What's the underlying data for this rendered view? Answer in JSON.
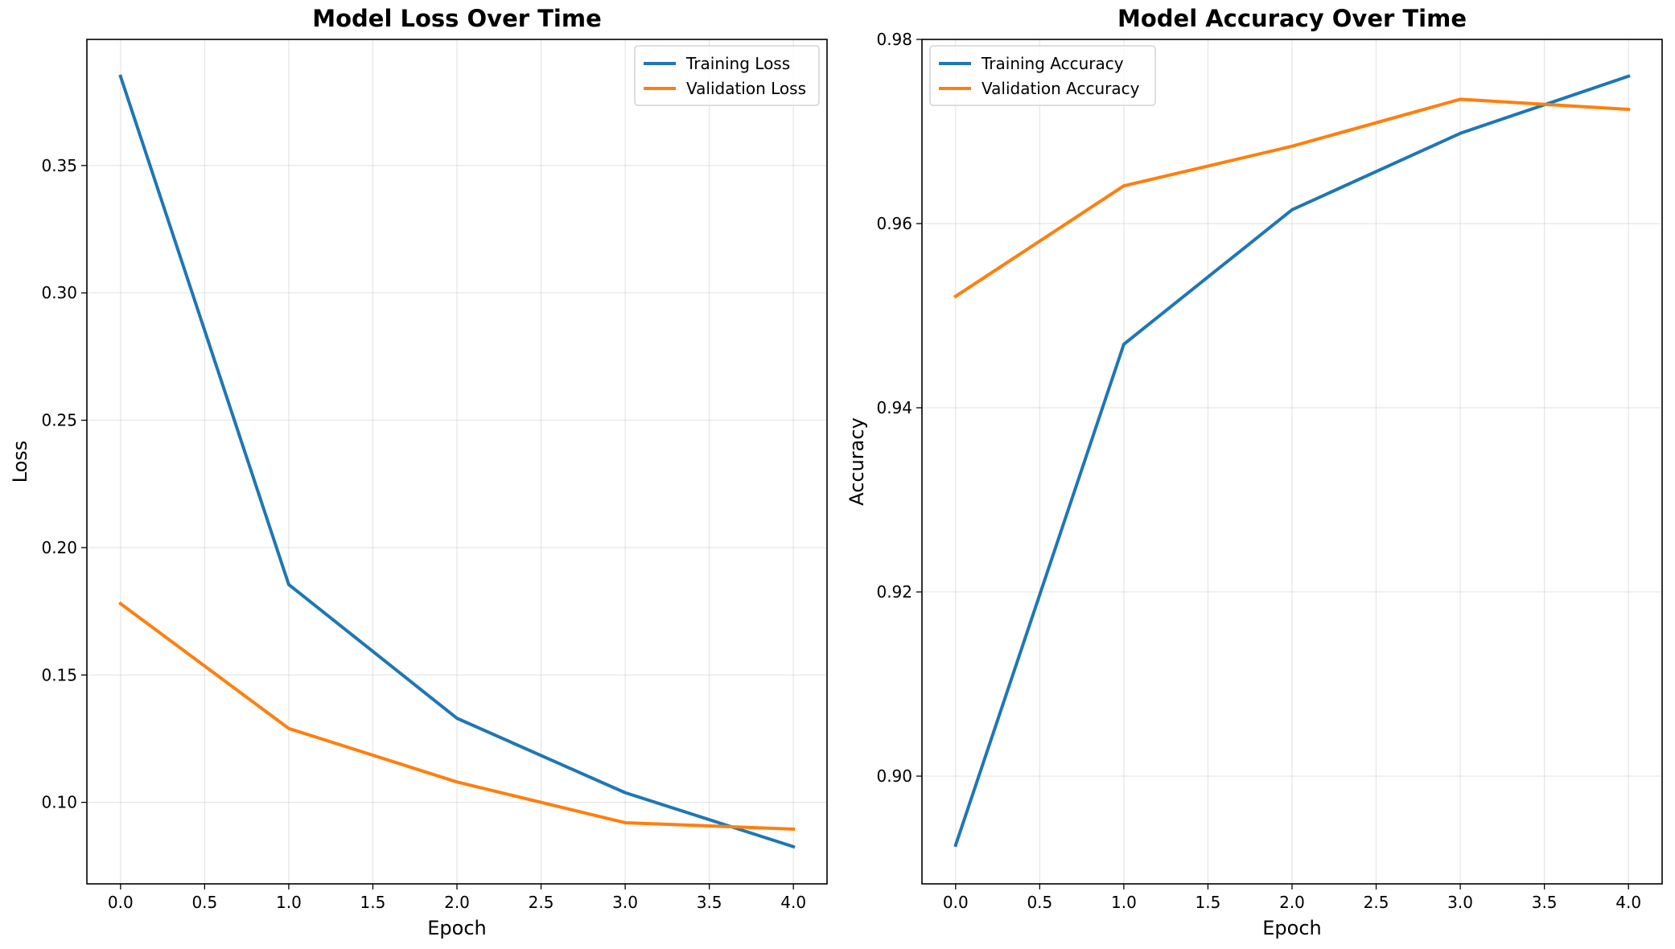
{
  "chart_data": [
    {
      "type": "line",
      "title": "Model Loss Over Time",
      "xlabel": "Epoch",
      "ylabel": "Loss",
      "x": [
        0,
        1,
        2,
        3,
        4
      ],
      "xlim": [
        -0.2,
        4.2
      ],
      "ylim": [
        0.068,
        0.3995
      ],
      "xticks": [
        0.0,
        0.5,
        1.0,
        1.5,
        2.0,
        2.5,
        3.0,
        3.5,
        4.0
      ],
      "xtick_labels": [
        "0.0",
        "0.5",
        "1.0",
        "1.5",
        "2.0",
        "2.5",
        "3.0",
        "3.5",
        "4.0"
      ],
      "yticks": [
        0.1,
        0.15,
        0.2,
        0.25,
        0.3,
        0.35
      ],
      "ytick_labels": [
        "0.10",
        "0.15",
        "0.20",
        "0.25",
        "0.30",
        "0.35"
      ],
      "grid": true,
      "legend_position": "top-right",
      "series": [
        {
          "name": "Training Loss",
          "color": "#1f77b4",
          "values": [
            0.385,
            0.1855,
            0.133,
            0.1038,
            0.0826
          ]
        },
        {
          "name": "Validation Loss",
          "color": "#ff7f0e",
          "values": [
            0.178,
            0.129,
            0.108,
            0.092,
            0.0895
          ]
        }
      ]
    },
    {
      "type": "line",
      "title": "Model Accuracy Over Time",
      "xlabel": "Epoch",
      "ylabel": "Accuracy",
      "x": [
        0,
        1,
        2,
        3,
        4
      ],
      "xlim": [
        -0.2,
        4.2
      ],
      "ylim": [
        0.8883,
        0.98
      ],
      "xticks": [
        0.0,
        0.5,
        1.0,
        1.5,
        2.0,
        2.5,
        3.0,
        3.5,
        4.0
      ],
      "xtick_labels": [
        "0.0",
        "0.5",
        "1.0",
        "1.5",
        "2.0",
        "2.5",
        "3.0",
        "3.5",
        "4.0"
      ],
      "yticks": [
        0.9,
        0.92,
        0.94,
        0.96,
        0.98
      ],
      "ytick_labels": [
        "0.90",
        "0.92",
        "0.94",
        "0.96",
        "0.98"
      ],
      "grid": true,
      "legend_position": "top-left",
      "series": [
        {
          "name": "Training Accuracy",
          "color": "#1f77b4",
          "values": [
            0.8925,
            0.9469,
            0.9615,
            0.9698,
            0.976
          ]
        },
        {
          "name": "Validation Accuracy",
          "color": "#ff7f0e",
          "values": [
            0.9521,
            0.9641,
            0.9684,
            0.9735,
            0.9724
          ]
        }
      ]
    }
  ]
}
